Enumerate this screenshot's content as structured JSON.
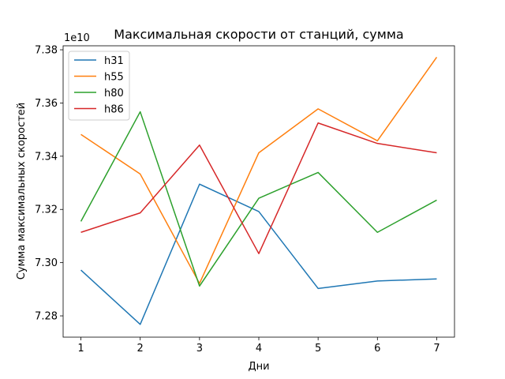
{
  "chart_data": {
    "type": "line",
    "title": "Максимальная скорости от станций, сумма",
    "xlabel": "Дни",
    "ylabel": "Сумма максимальных скоростей",
    "y_offset_label": "1e10",
    "x": [
      1,
      2,
      3,
      4,
      5,
      6,
      7
    ],
    "xlim": [
      0.7,
      7.3
    ],
    "ylim": [
      7.272,
      7.3815
    ],
    "x_ticks": [
      "1",
      "2",
      "3",
      "4",
      "5",
      "6",
      "7"
    ],
    "y_ticks": [
      7.28,
      7.3,
      7.32,
      7.34,
      7.36,
      7.38
    ],
    "y_tick_labels": [
      "7.28",
      "7.30",
      "7.32",
      "7.34",
      "7.36",
      "7.38"
    ],
    "grid": false,
    "legend_position": "top-left",
    "series": [
      {
        "name": "h31",
        "color": "#1f77b4",
        "values": [
          7.2972,
          7.2768,
          7.3295,
          7.3192,
          7.2903,
          7.2931,
          7.2939
        ]
      },
      {
        "name": "h55",
        "color": "#ff7f0e",
        "values": [
          7.3482,
          7.3333,
          7.2922,
          7.3413,
          7.3578,
          7.3458,
          7.3772
        ]
      },
      {
        "name": "h80",
        "color": "#2ca02c",
        "values": [
          7.3155,
          7.3567,
          7.2912,
          7.3242,
          7.3339,
          7.3114,
          7.3235
        ]
      },
      {
        "name": "h86",
        "color": "#d62728",
        "values": [
          7.3114,
          7.3187,
          7.3442,
          7.3034,
          7.3525,
          7.3448,
          7.3413
        ]
      }
    ]
  }
}
